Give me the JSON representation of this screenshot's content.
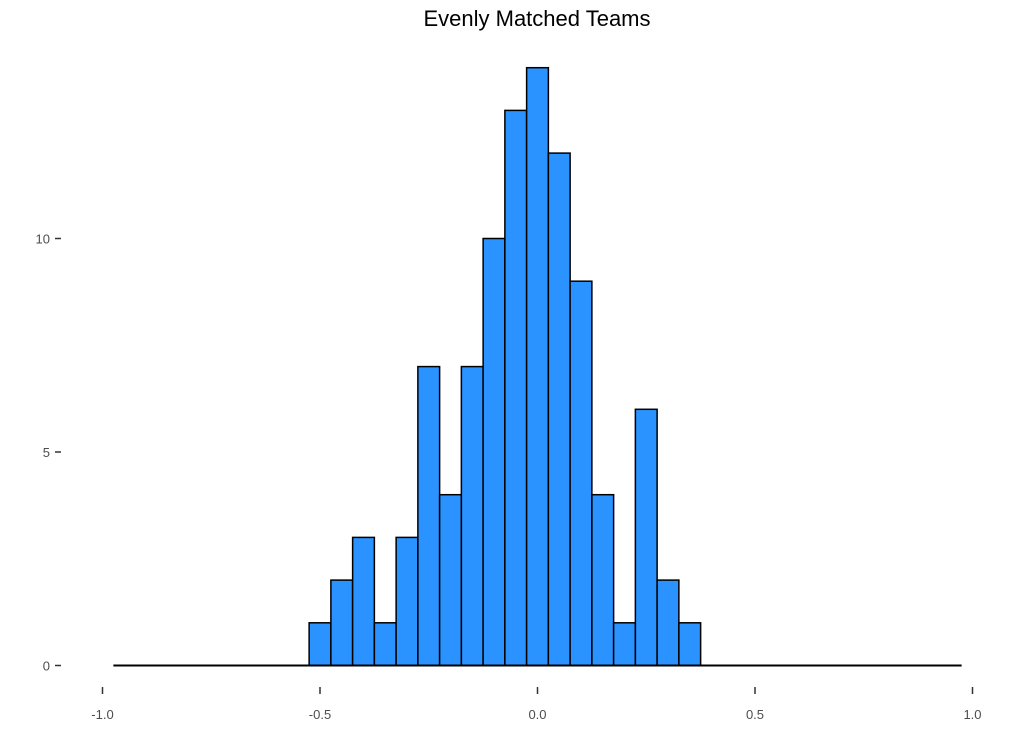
{
  "chart_data": {
    "type": "bar",
    "title": "Evenly Matched Teams",
    "xlabel": "",
    "ylabel": "",
    "xlim": [
      -1.0,
      1.0
    ],
    "ylim": [
      0,
      14
    ],
    "x_ticks": [
      "-1.0",
      "-0.5",
      "0.0",
      "0.5",
      "1.0"
    ],
    "y_ticks": [
      "0",
      "5",
      "10"
    ],
    "bin_width": 0.05,
    "bins": [
      {
        "x_start": -0.525,
        "count": 1
      },
      {
        "x_start": -0.475,
        "count": 2
      },
      {
        "x_start": -0.425,
        "count": 3
      },
      {
        "x_start": -0.375,
        "count": 1
      },
      {
        "x_start": -0.325,
        "count": 3
      },
      {
        "x_start": -0.275,
        "count": 7
      },
      {
        "x_start": -0.225,
        "count": 4
      },
      {
        "x_start": -0.175,
        "count": 7
      },
      {
        "x_start": -0.125,
        "count": 10
      },
      {
        "x_start": -0.075,
        "count": 13
      },
      {
        "x_start": -0.025,
        "count": 14
      },
      {
        "x_start": 0.025,
        "count": 12
      },
      {
        "x_start": 0.075,
        "count": 9
      },
      {
        "x_start": 0.125,
        "count": 4
      },
      {
        "x_start": 0.175,
        "count": 1
      },
      {
        "x_start": 0.225,
        "count": 6
      },
      {
        "x_start": 0.275,
        "count": 2
      },
      {
        "x_start": 0.325,
        "count": 1
      }
    ],
    "baseline_range": [
      -0.975,
      0.975
    ],
    "grid": false,
    "fill_color": "#2b93ff",
    "edge_color": "#000000"
  }
}
